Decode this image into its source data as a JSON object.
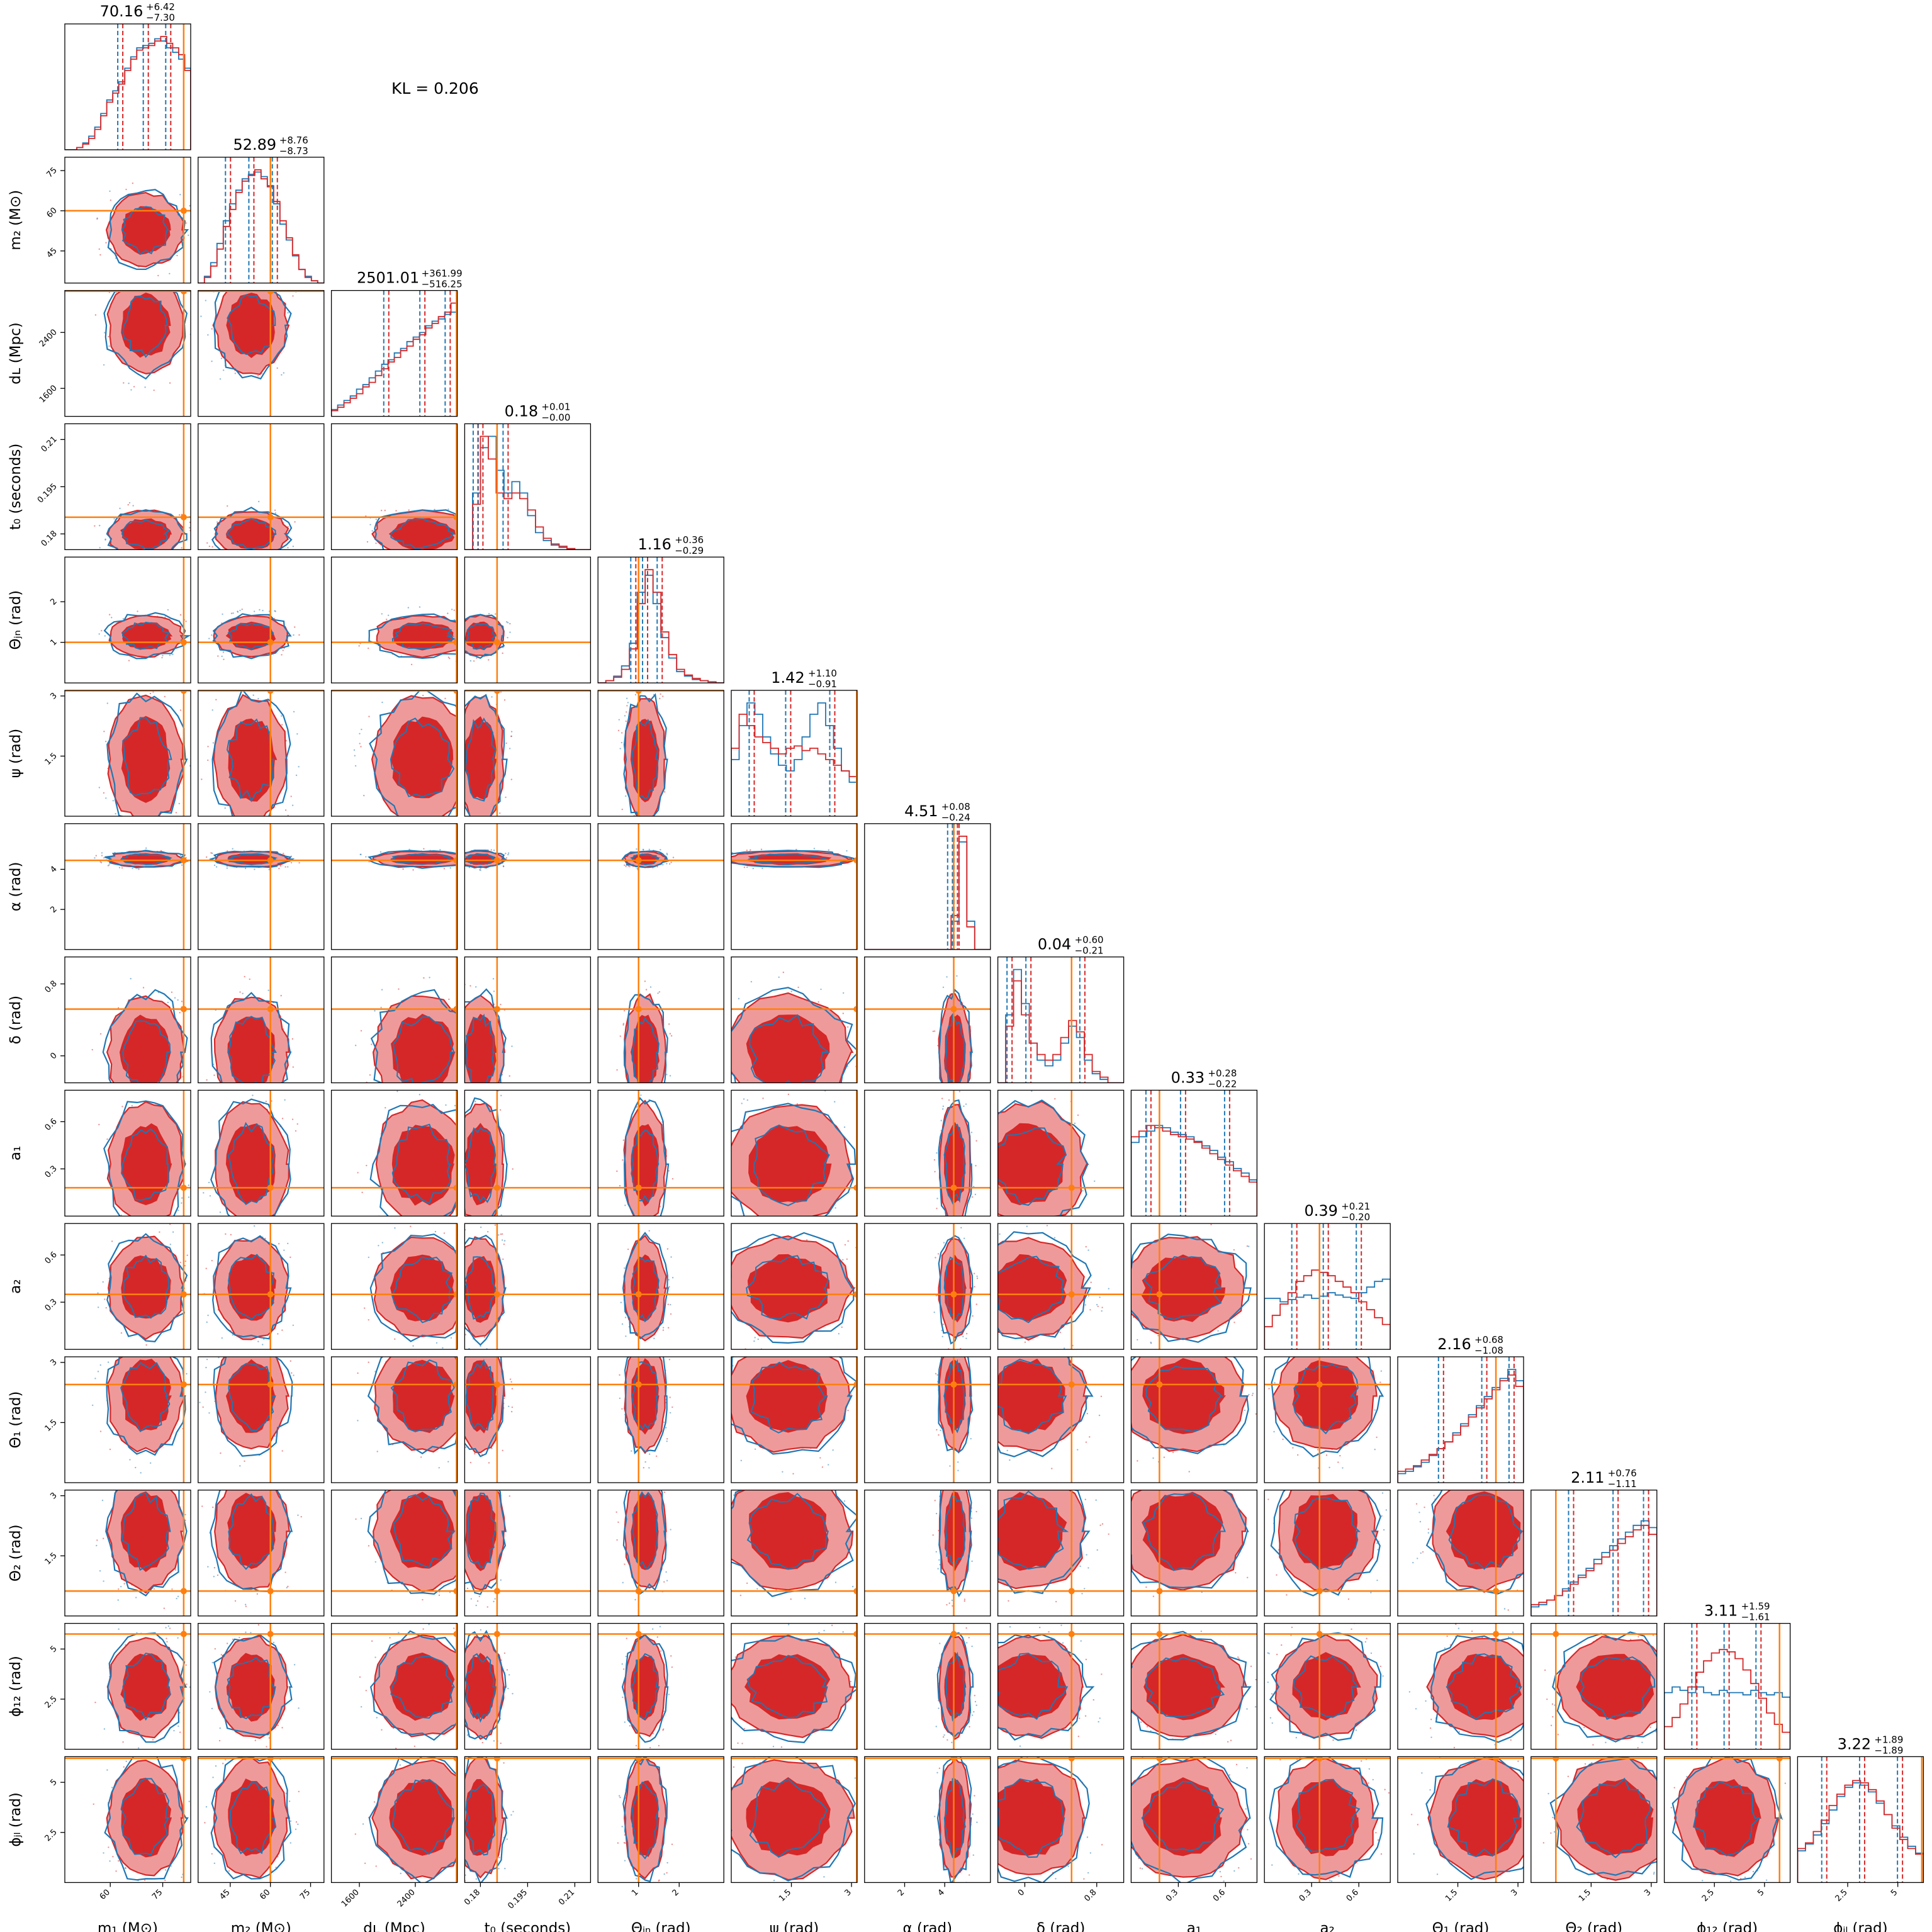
{
  "kl_label": "KL = 0.206",
  "chart_data": {
    "type": "corner",
    "colors": {
      "series_a": "#d62728",
      "series_a_fill": "#ef9a9a",
      "series_b": "#1f77b4",
      "truth": "#ff7f0e"
    },
    "parameters": [
      {
        "axis_label": "m₁ (M⊙)",
        "range": [
          47,
          83
        ],
        "ticks": [
          60,
          75
        ],
        "title": "70.16",
        "title_plus": "+6.42",
        "title_minus": "−7.30",
        "truth": 81,
        "median": 70.16,
        "q_low": 62.86,
        "q_high": 76.58,
        "hist_a": [
          0,
          0,
          0.02,
          0.05,
          0.1,
          0.18,
          0.3,
          0.42,
          0.5,
          0.58,
          0.7,
          0.8,
          0.88,
          0.9,
          0.92,
          0.96,
          1,
          0.94,
          0.9,
          0.84,
          0.7
        ],
        "hist_b": [
          0,
          0,
          0.02,
          0.06,
          0.12,
          0.2,
          0.32,
          0.44,
          0.52,
          0.6,
          0.72,
          0.82,
          0.9,
          0.92,
          0.94,
          0.98,
          0.96,
          0.9,
          0.86,
          0.8,
          0.72
        ]
      },
      {
        "axis_label": "m₂ (M⊙)",
        "range": [
          33,
          80
        ],
        "ticks": [
          45,
          60,
          75
        ],
        "title": "52.89",
        "title_plus": "+8.76",
        "title_minus": "−8.73",
        "truth": 60,
        "median": 52.89,
        "q_low": 44.16,
        "q_high": 61.65,
        "hist_a": [
          0,
          0.05,
          0.15,
          0.3,
          0.5,
          0.65,
          0.8,
          0.9,
          0.95,
          1,
          0.92,
          0.85,
          0.72,
          0.55,
          0.4,
          0.25,
          0.12,
          0.05,
          0.02,
          0
        ],
        "hist_b": [
          0,
          0.06,
          0.18,
          0.35,
          0.55,
          0.7,
          0.82,
          0.92,
          0.96,
          0.98,
          0.94,
          0.86,
          0.7,
          0.52,
          0.38,
          0.24,
          0.12,
          0.06,
          0.02,
          0
        ]
      },
      {
        "axis_label": "dʟ (Mpc)",
        "range": [
          1200,
          3000
        ],
        "ticks": [
          1600,
          2400
        ],
        "title": "2501.01",
        "title_plus": "+361.99",
        "title_minus": "−516.25",
        "truth": 2990,
        "median": 2501.01,
        "q_low": 1984.76,
        "q_high": 2863.0,
        "hist_a": [
          0.05,
          0.08,
          0.12,
          0.16,
          0.2,
          0.26,
          0.3,
          0.36,
          0.42,
          0.48,
          0.52,
          0.58,
          0.62,
          0.68,
          0.72,
          0.78,
          0.82,
          0.88,
          0.92,
          1
        ],
        "hist_b": [
          0.06,
          0.1,
          0.14,
          0.18,
          0.24,
          0.28,
          0.34,
          0.4,
          0.46,
          0.5,
          0.56,
          0.6,
          0.66,
          0.7,
          0.74,
          0.8,
          0.84,
          0.86,
          0.9,
          0.92
        ]
      },
      {
        "axis_label": "t₀ (seconds)",
        "range": [
          0.175,
          0.215
        ],
        "ticks": [
          0.18,
          0.195,
          0.21
        ],
        "title": "0.18",
        "title_plus": "+0.01",
        "title_minus": "−0.00",
        "truth": 0.1853,
        "median": 0.18,
        "q_low": 0.1785,
        "q_high": 0.188,
        "hist_a": [
          0,
          0.4,
          1,
          0.8,
          0.5,
          0.45,
          0.5,
          0.45,
          0.35,
          0.2,
          0.1,
          0.05,
          0.03,
          0.01,
          0,
          0
        ],
        "hist_b": [
          0,
          0.5,
          0.9,
          1,
          0.7,
          0.5,
          0.6,
          0.5,
          0.3,
          0.15,
          0.08,
          0.04,
          0.02,
          0,
          0,
          0
        ]
      },
      {
        "axis_label": "Θⱼₙ (rad)",
        "range": [
          0,
          3.1
        ],
        "ticks": [
          1,
          2
        ],
        "title": "1.16",
        "title_plus": "+0.36",
        "title_minus": "−0.29",
        "truth": 1.0,
        "median": 1.16,
        "q_low": 0.87,
        "q_high": 1.52,
        "hist_a": [
          0,
          0.02,
          0.05,
          0.12,
          0.3,
          0.7,
          1,
          0.8,
          0.45,
          0.25,
          0.12,
          0.07,
          0.04,
          0.02,
          0.01,
          0
        ],
        "hist_b": [
          0,
          0.02,
          0.06,
          0.15,
          0.35,
          0.8,
          0.95,
          0.7,
          0.4,
          0.22,
          0.1,
          0.06,
          0.03,
          0.02,
          0.01,
          0
        ]
      },
      {
        "axis_label": "ψ (rad)",
        "range": [
          0,
          3.14
        ],
        "ticks": [
          1.5,
          3.0
        ],
        "title": "1.42",
        "title_plus": "+1.10",
        "title_minus": "−0.91",
        "truth": 3.13,
        "median": 1.42,
        "q_low": 0.51,
        "q_high": 2.52,
        "hist_a": [
          0.6,
          0.9,
          0.8,
          0.7,
          0.65,
          0.6,
          0.55,
          0.6,
          0.62,
          0.58,
          0.6,
          0.55,
          0.5,
          0.45,
          0.4,
          0.35
        ],
        "hist_b": [
          0.5,
          0.8,
          1,
          0.9,
          0.7,
          0.55,
          0.45,
          0.4,
          0.5,
          0.7,
          0.9,
          1,
          0.8,
          0.6,
          0.4,
          0.3
        ]
      },
      {
        "axis_label": "α (rad)",
        "range": [
          0,
          6.28
        ],
        "ticks": [
          2,
          4
        ],
        "title": "4.51",
        "title_plus": "+0.08",
        "title_minus": "−0.24",
        "truth": 4.45,
        "median": 4.51,
        "q_low": 4.27,
        "q_high": 4.59,
        "hist_a": [
          0,
          0,
          0,
          0,
          0,
          0,
          0,
          0,
          0,
          0,
          0,
          0.3,
          1,
          0.2,
          0,
          0
        ],
        "hist_b": [
          0,
          0,
          0,
          0,
          0,
          0,
          0,
          0,
          0,
          0,
          0,
          0.25,
          0.95,
          0.25,
          0,
          0
        ]
      },
      {
        "axis_label": "δ (rad)",
        "range": [
          -0.3,
          1.1
        ],
        "ticks": [
          0.0,
          0.8
        ],
        "title": "0.04",
        "title_plus": "+0.60",
        "title_minus": "−0.21",
        "truth": 0.52,
        "median": 0.04,
        "q_low": -0.17,
        "q_high": 0.64,
        "hist_a": [
          0,
          0.5,
          0.9,
          0.6,
          0.35,
          0.25,
          0.2,
          0.25,
          0.4,
          0.55,
          0.45,
          0.25,
          0.1,
          0.05,
          0,
          0
        ],
        "hist_b": [
          0,
          0.6,
          1,
          0.7,
          0.35,
          0.2,
          0.15,
          0.2,
          0.35,
          0.5,
          0.4,
          0.2,
          0.08,
          0.03,
          0,
          0
        ]
      },
      {
        "axis_label": "a₁",
        "range": [
          0,
          0.8
        ],
        "ticks": [
          0.3,
          0.6
        ],
        "title": "0.33",
        "title_plus": "+0.28",
        "title_minus": "−0.22",
        "truth": 0.18,
        "median": 0.33,
        "q_low": 0.11,
        "q_high": 0.61,
        "hist_a": [
          0.7,
          0.75,
          0.8,
          0.78,
          0.75,
          0.72,
          0.7,
          0.68,
          0.65,
          0.6,
          0.55,
          0.5,
          0.45,
          0.4,
          0.35,
          0.3
        ],
        "hist_b": [
          0.65,
          0.7,
          0.75,
          0.8,
          0.78,
          0.74,
          0.72,
          0.7,
          0.66,
          0.62,
          0.58,
          0.52,
          0.48,
          0.42,
          0.38,
          0.32
        ]
      },
      {
        "axis_label": "a₂",
        "range": [
          0,
          0.8
        ],
        "ticks": [
          0.3,
          0.6
        ],
        "title": "0.39",
        "title_plus": "+0.21",
        "title_minus": "−0.20",
        "truth": 0.35,
        "median": 0.39,
        "q_low": 0.19,
        "q_high": 0.6,
        "hist_a": [
          0.2,
          0.3,
          0.4,
          0.5,
          0.6,
          0.65,
          0.7,
          0.68,
          0.65,
          0.6,
          0.55,
          0.5,
          0.42,
          0.35,
          0.28,
          0.22
        ],
        "hist_b": [
          0.45,
          0.45,
          0.42,
          0.44,
          0.46,
          0.48,
          0.45,
          0.47,
          0.5,
          0.48,
          0.46,
          0.45,
          0.5,
          0.55,
          0.6,
          0.62
        ]
      },
      {
        "axis_label": "Θ₁ (rad)",
        "range": [
          0,
          3.14
        ],
        "ticks": [
          1.5,
          3.0
        ],
        "title": "2.16",
        "title_plus": "+0.68",
        "title_minus": "−1.08",
        "truth": 2.45,
        "median": 2.16,
        "q_low": 1.08,
        "q_high": 2.84,
        "hist_a": [
          0.1,
          0.12,
          0.15,
          0.2,
          0.25,
          0.3,
          0.36,
          0.42,
          0.5,
          0.58,
          0.66,
          0.74,
          0.82,
          0.9,
          0.95,
          0.85
        ],
        "hist_b": [
          0.08,
          0.1,
          0.14,
          0.18,
          0.24,
          0.3,
          0.36,
          0.44,
          0.52,
          0.6,
          0.68,
          0.76,
          0.84,
          0.92,
          1,
          0.9
        ]
      },
      {
        "axis_label": "Θ₂ (rad)",
        "range": [
          0,
          3.14
        ],
        "ticks": [
          1.5,
          3.0
        ],
        "title": "2.11",
        "title_plus": "+0.76",
        "title_minus": "−1.11",
        "truth": 0.62,
        "median": 2.11,
        "q_low": 1.0,
        "q_high": 2.87,
        "hist_a": [
          0.1,
          0.12,
          0.14,
          0.18,
          0.22,
          0.28,
          0.34,
          0.4,
          0.46,
          0.52,
          0.58,
          0.64,
          0.7,
          0.76,
          0.8,
          0.72
        ],
        "hist_b": [
          0.08,
          0.1,
          0.14,
          0.18,
          0.24,
          0.3,
          0.36,
          0.42,
          0.5,
          0.56,
          0.62,
          0.68,
          0.74,
          0.8,
          0.84,
          0.78
        ]
      },
      {
        "axis_label": "ϕ₁₂ (rad)",
        "range": [
          0,
          6.28
        ],
        "ticks": [
          2.5,
          5.0
        ],
        "title": "3.11",
        "title_plus": "+1.59",
        "title_minus": "−1.61",
        "truth": 5.75,
        "median": 3.11,
        "q_low": 1.5,
        "q_high": 4.7,
        "hist_a": [
          0.2,
          0.28,
          0.4,
          0.55,
          0.68,
          0.78,
          0.85,
          0.88,
          0.86,
          0.8,
          0.7,
          0.58,
          0.45,
          0.32,
          0.22,
          0.15
        ],
        "hist_b": [
          0.5,
          0.55,
          0.52,
          0.5,
          0.55,
          0.5,
          0.48,
          0.52,
          0.5,
          0.5,
          0.48,
          0.52,
          0.5,
          0.48,
          0.5,
          0.46
        ]
      },
      {
        "axis_label": "ϕⱼₗ (rad)",
        "range": [
          0,
          6.28
        ],
        "ticks": [
          2.5,
          5.0
        ],
        "title": "3.22",
        "title_plus": "+1.89",
        "title_minus": "−1.89",
        "truth": 6.2,
        "median": 3.22,
        "q_low": 1.33,
        "q_high": 5.11,
        "hist_a": [
          0.3,
          0.35,
          0.45,
          0.55,
          0.68,
          0.78,
          0.86,
          0.9,
          0.88,
          0.82,
          0.72,
          0.6,
          0.48,
          0.38,
          0.3,
          0.25
        ],
        "hist_b": [
          0.28,
          0.34,
          0.42,
          0.52,
          0.64,
          0.76,
          0.84,
          0.88,
          0.86,
          0.8,
          0.7,
          0.6,
          0.5,
          0.4,
          0.32,
          0.26
        ]
      }
    ]
  }
}
